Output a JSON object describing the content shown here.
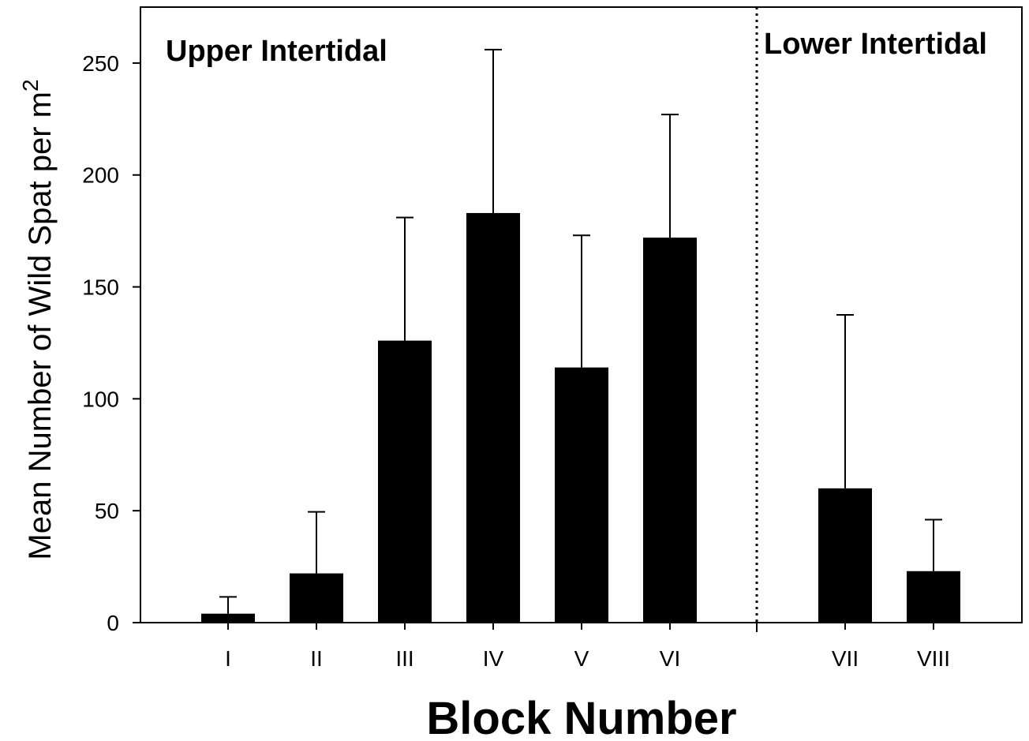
{
  "chart_data": {
    "type": "bar",
    "title": "",
    "xlabel": "Block Number",
    "ylabel": "Mean Number of Wild Spat per m",
    "ylabel_superscript": "2",
    "ylim": [
      0,
      275
    ],
    "yticks": [
      0,
      50,
      100,
      150,
      200,
      250
    ],
    "categories": [
      "I",
      "II",
      "III",
      "IV",
      "V",
      "VI",
      "VII",
      "VIII"
    ],
    "series": [
      {
        "values": [
          4,
          22,
          126,
          183,
          114,
          172,
          60,
          23
        ],
        "error_upper": [
          11.5,
          49.5,
          181,
          256,
          173,
          227,
          137.5,
          46
        ]
      }
    ],
    "bar_color": "#000000",
    "grid": false,
    "regions": [
      {
        "label": "Upper Intertidal",
        "categories": [
          "I",
          "II",
          "III",
          "IV",
          "V",
          "VI"
        ]
      },
      {
        "label": "Lower Intertidal",
        "categories": [
          "VII",
          "VIII"
        ]
      }
    ],
    "divider": {
      "style": "dotted",
      "between": [
        "VI",
        "VII"
      ]
    }
  }
}
